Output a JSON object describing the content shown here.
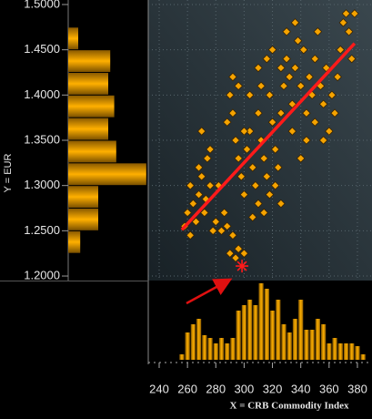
{
  "chart_data": {
    "type": "scatter",
    "x_label": "X = CRB Commodity Index",
    "y_label": "Y = EUR",
    "xlim": [
      232.3,
      390.3
    ],
    "ylim": [
      1.195,
      1.505
    ],
    "xticks": [
      240,
      260,
      280,
      300,
      320,
      340,
      360,
      380
    ],
    "yticks": [
      {
        "value": 1.2,
        "label": "1.2000"
      },
      {
        "value": 1.25,
        "label": "1.2500"
      },
      {
        "value": 1.3,
        "label": "1.3000"
      },
      {
        "value": 1.35,
        "label": "1.3500"
      },
      {
        "value": 1.4,
        "label": "1.4000"
      },
      {
        "value": 1.45,
        "label": "1.4500"
      },
      {
        "value": 1.5,
        "label": "1.5000"
      }
    ],
    "grid": true,
    "series": [
      {
        "color": "#f5a300",
        "x": [
          258,
          260,
          262,
          264,
          266,
          268,
          270,
          272,
          274,
          276,
          278,
          262,
          268,
          273,
          280,
          284,
          286,
          282,
          276,
          270,
          290,
          294,
          296,
          300,
          292,
          288,
          288,
          290,
          292,
          294,
          296,
          298,
          300,
          302,
          304,
          306,
          308,
          310,
          312,
          314,
          316,
          318,
          320,
          322,
          324,
          310,
          314,
          306,
          300,
          296,
          292,
          304,
          318,
          322,
          326,
          312,
          326,
          328,
          330,
          332,
          334,
          336,
          338,
          340,
          342,
          344,
          346,
          348,
          350,
          352,
          354,
          356,
          358,
          360,
          362,
          364,
          366,
          368,
          370,
          372,
          374,
          376,
          378,
          334,
          340,
          344,
          330,
          336,
          350,
          356,
          326,
          320,
          316,
          310
        ],
        "y": [
          1.255,
          1.27,
          1.3,
          1.28,
          1.26,
          1.29,
          1.31,
          1.27,
          1.33,
          1.3,
          1.25,
          1.245,
          1.32,
          1.285,
          1.26,
          1.25,
          1.27,
          1.3,
          1.34,
          1.36,
          1.225,
          1.22,
          1.23,
          1.225,
          1.245,
          1.255,
          1.37,
          1.4,
          1.38,
          1.35,
          1.33,
          1.31,
          1.29,
          1.34,
          1.36,
          1.32,
          1.3,
          1.38,
          1.35,
          1.33,
          1.31,
          1.29,
          1.37,
          1.34,
          1.32,
          1.28,
          1.27,
          1.265,
          1.36,
          1.41,
          1.42,
          1.4,
          1.4,
          1.3,
          1.28,
          1.41,
          1.38,
          1.41,
          1.44,
          1.42,
          1.39,
          1.43,
          1.46,
          1.41,
          1.45,
          1.38,
          1.42,
          1.4,
          1.44,
          1.47,
          1.41,
          1.39,
          1.43,
          1.36,
          1.4,
          1.38,
          1.42,
          1.45,
          1.48,
          1.49,
          1.47,
          1.44,
          1.49,
          1.36,
          1.33,
          1.35,
          1.47,
          1.48,
          1.37,
          1.35,
          1.43,
          1.45,
          1.44,
          1.43
        ]
      }
    ],
    "trend_line": {
      "color": "#ff1a1a",
      "x": [
        256,
        378
      ],
      "y": [
        1.251,
        1.457
      ]
    },
    "highlight": {
      "color": "#ff1a1a",
      "x": 298.5,
      "y": 1.211
    },
    "x_histogram": {
      "color": "#e6a000",
      "bins": [
        254,
        258,
        262,
        266,
        270,
        274,
        278,
        282,
        286,
        290,
        294,
        298,
        302,
        306,
        310,
        314,
        318,
        322,
        326,
        330,
        334,
        338,
        342,
        346,
        350,
        354,
        358,
        362,
        366,
        370,
        374,
        378,
        382,
        386
      ],
      "counts": [
        2,
        10,
        13,
        15,
        9,
        8,
        6,
        8,
        6,
        8,
        18,
        20,
        22,
        20,
        28,
        26,
        18,
        22,
        13,
        10,
        15,
        22,
        11,
        11,
        15,
        13,
        6,
        8,
        6,
        6,
        6,
        5,
        2
      ]
    },
    "y_histogram": {
      "color": "#e6a000",
      "bins": [
        1.225,
        1.25,
        1.275,
        1.3,
        1.325,
        1.35,
        1.375,
        1.4,
        1.425,
        1.45,
        1.475
      ],
      "counts": [
        6,
        15,
        15,
        39,
        24,
        20,
        23,
        20,
        21,
        5
      ]
    }
  }
}
